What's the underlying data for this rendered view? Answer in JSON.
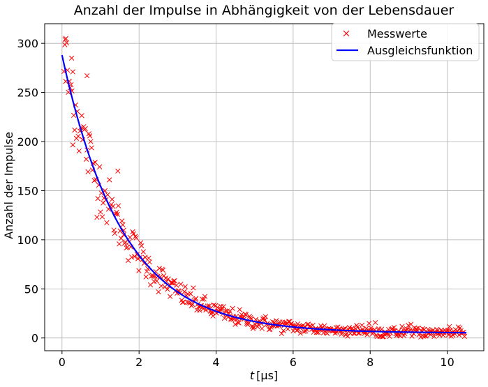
{
  "chart_data": {
    "type": "scatter",
    "title": "Anzahl der Impulse in Abhängigkeit von der Lebensdauer",
    "xlabel_italic": "t",
    "xlabel_unit": "[µs]",
    "ylabel": "Anzahl der Impulse",
    "xlim": [
      -0.45,
      10.95
    ],
    "ylim": [
      -13,
      320
    ],
    "xticks": [
      0,
      2,
      4,
      6,
      8,
      10
    ],
    "yticks": [
      0,
      50,
      100,
      150,
      200,
      250,
      300
    ],
    "grid": true,
    "legend_position": "top-right",
    "series": [
      {
        "name": "Messwerte",
        "kind": "markers",
        "marker": "x",
        "color": "#ff0000",
        "model": {
          "a": 283,
          "tau": 1.57,
          "c": 5
        },
        "x_range": [
          0.05,
          10.45
        ],
        "n": 450,
        "noise_rel": 0.08,
        "noise_abs": 2.5,
        "extra_points": [
          [
            0.1,
            305
          ],
          [
            0.08,
            304
          ],
          [
            0.25,
            285
          ],
          [
            0.28,
            271
          ],
          [
            0.65,
            267
          ],
          [
            1.45,
            170
          ],
          [
            1.6,
            105
          ],
          [
            4.45,
            22
          ],
          [
            4.8,
            17
          ]
        ]
      },
      {
        "name": "Ausgleichsfunktion",
        "kind": "line",
        "color": "#0000ff",
        "model": {
          "a": 283,
          "tau": 1.57,
          "c": 5
        },
        "x_range": [
          0,
          10.5
        ]
      }
    ]
  }
}
